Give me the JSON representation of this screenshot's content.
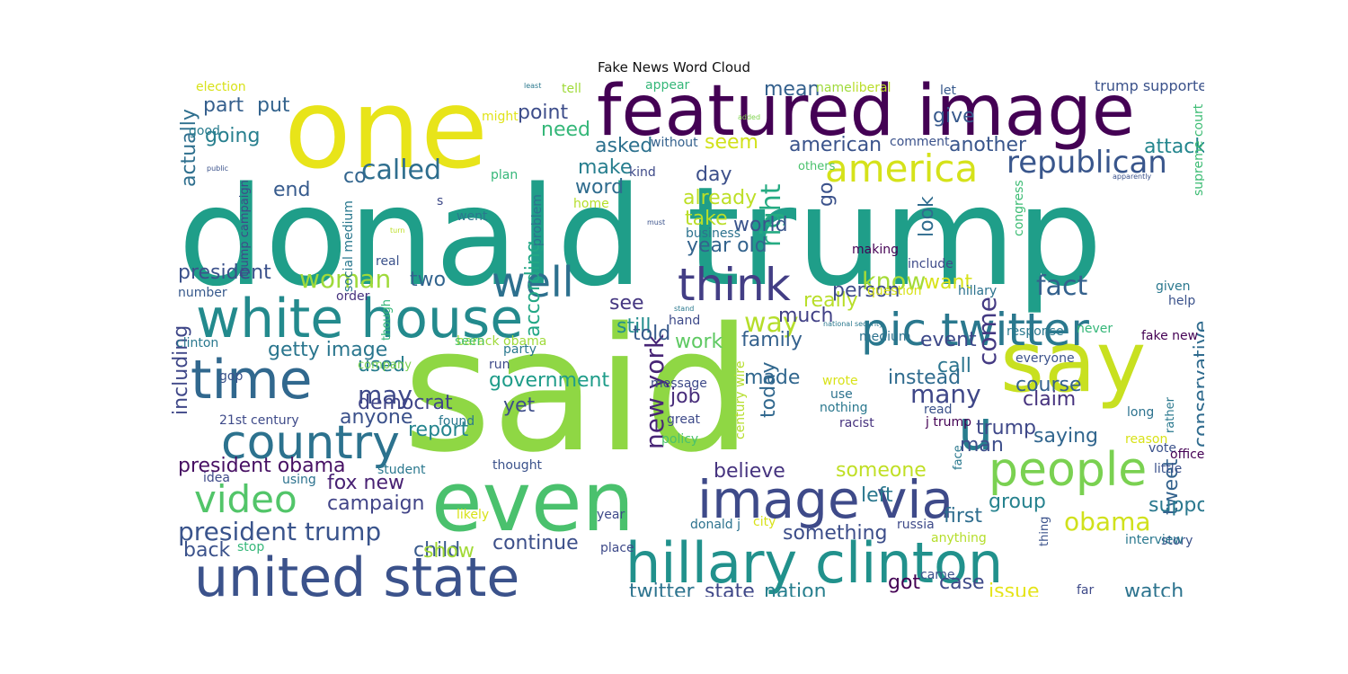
{
  "chart_data": {
    "type": "wordcloud",
    "title": "Fake News Word Cloud",
    "colormap": "viridis",
    "background": "#ffffff",
    "words": [
      {
        "text": "said",
        "weight": 1.0,
        "color": "#8fd744"
      },
      {
        "text": "donald trump",
        "weight": 0.95,
        "color": "#1f9e89"
      },
      {
        "text": "one",
        "weight": 0.7,
        "color": "#e8e419"
      },
      {
        "text": "even",
        "weight": 0.55,
        "color": "#4ac16d"
      },
      {
        "text": "featured image",
        "weight": 0.52,
        "color": "#440154"
      },
      {
        "text": "say",
        "weight": 0.5,
        "color": "#c8e020"
      },
      {
        "text": "white house",
        "weight": 0.42,
        "color": "#238a8d"
      },
      {
        "text": "hillary clinton",
        "weight": 0.42,
        "color": "#21918c"
      },
      {
        "text": "united state",
        "weight": 0.4,
        "color": "#3b528b"
      },
      {
        "text": "image via",
        "weight": 0.38,
        "color": "#3e4a89"
      },
      {
        "text": "time",
        "weight": 0.36,
        "color": "#31688e"
      },
      {
        "text": "people",
        "weight": 0.34,
        "color": "#7ad151"
      },
      {
        "text": "pic twitter",
        "weight": 0.32,
        "color": "#2a788e"
      },
      {
        "text": "u",
        "weight": 0.32,
        "color": "#287d8e"
      },
      {
        "text": "country",
        "weight": 0.3,
        "color": "#2c728e"
      },
      {
        "text": "think",
        "weight": 0.28,
        "color": "#433e85"
      },
      {
        "text": "well",
        "weight": 0.28,
        "color": "#2d708e"
      },
      {
        "text": "america",
        "weight": 0.26,
        "color": "#d5e21a"
      },
      {
        "text": "video",
        "weight": 0.24,
        "color": "#52c569"
      },
      {
        "text": "republican",
        "weight": 0.2,
        "color": "#39568c"
      },
      {
        "text": "called",
        "weight": 0.18,
        "color": "#2e6e8e"
      },
      {
        "text": "president trump",
        "weight": 0.18,
        "color": "#3a548c"
      },
      {
        "text": "new york",
        "weight": 0.17,
        "color": "#482576"
      },
      {
        "text": "fact",
        "weight": 0.17,
        "color": "#34618d"
      },
      {
        "text": "way",
        "weight": 0.17,
        "color": "#b5de2b"
      },
      {
        "text": "know",
        "weight": 0.16,
        "color": "#a5db36"
      },
      {
        "text": "right",
        "weight": 0.16,
        "color": "#25ab82"
      },
      {
        "text": "come",
        "weight": 0.16,
        "color": "#443a83"
      },
      {
        "text": "woman",
        "weight": 0.15,
        "color": "#9fda3a"
      },
      {
        "text": "obama",
        "weight": 0.15,
        "color": "#d0e11c"
      },
      {
        "text": "may",
        "weight": 0.15,
        "color": "#3e4989"
      },
      {
        "text": "many",
        "weight": 0.14,
        "color": "#3f4788"
      },
      {
        "text": "government",
        "weight": 0.14,
        "color": "#1e9c89"
      },
      {
        "text": "according",
        "weight": 0.13,
        "color": "#22a785"
      },
      {
        "text": "conservative",
        "weight": 0.13,
        "color": "#2f6b8e"
      },
      {
        "text": "campaign",
        "weight": 0.13,
        "color": "#414487"
      },
      {
        "text": "president obama",
        "weight": 0.13,
        "color": "#471063"
      },
      {
        "text": "getty image",
        "weight": 0.13,
        "color": "#2a768e"
      },
      {
        "text": "president",
        "weight": 0.12,
        "color": "#3b518b"
      },
      {
        "text": "point",
        "weight": 0.12,
        "color": "#3d4d8a"
      },
      {
        "text": "need",
        "weight": 0.12,
        "color": "#35b779"
      },
      {
        "text": "going",
        "weight": 0.12,
        "color": "#277f8e"
      },
      {
        "text": "part",
        "weight": 0.12,
        "color": "#355f8d"
      },
      {
        "text": "actually",
        "weight": 0.12,
        "color": "#2e6f8e"
      },
      {
        "text": "much",
        "weight": 0.12,
        "color": "#424186"
      },
      {
        "text": "see",
        "weight": 0.12,
        "color": "#453781"
      },
      {
        "text": "take",
        "weight": 0.12,
        "color": "#bade28"
      },
      {
        "text": "two",
        "weight": 0.11,
        "color": "#32648e"
      },
      {
        "text": "still",
        "weight": 0.11,
        "color": "#228d8d"
      },
      {
        "text": "look",
        "weight": 0.11,
        "color": "#2f6c8e"
      },
      {
        "text": "want",
        "weight": 0.11,
        "color": "#d8e219"
      },
      {
        "text": "work",
        "weight": 0.11,
        "color": "#5ec962"
      },
      {
        "text": "year old",
        "weight": 0.11,
        "color": "#33638d"
      },
      {
        "text": "american",
        "weight": 0.11,
        "color": "#3a538b"
      },
      {
        "text": "another",
        "weight": 0.11,
        "color": "#39568c"
      },
      {
        "text": "trump",
        "weight": 0.11,
        "color": "#3f4889"
      },
      {
        "text": "claim",
        "weight": 0.11,
        "color": "#46327e"
      },
      {
        "text": "saying",
        "weight": 0.11,
        "color": "#31668e"
      },
      {
        "text": "call",
        "weight": 0.11,
        "color": "#2b748e"
      },
      {
        "text": "left",
        "weight": 0.11,
        "color": "#2a778e"
      },
      {
        "text": "first",
        "weight": 0.11,
        "color": "#2e6d8e"
      },
      {
        "text": "democrat",
        "weight": 0.1,
        "color": "#404588"
      },
      {
        "text": "fox new",
        "weight": 0.1,
        "color": "#482173"
      },
      {
        "text": "child",
        "weight": 0.1,
        "color": "#38598c"
      },
      {
        "text": "group",
        "weight": 0.1,
        "color": "#26828e"
      },
      {
        "text": "man",
        "weight": 0.1,
        "color": "#3d4e8a"
      },
      {
        "text": "mean",
        "weight": 0.1,
        "color": "#34608d"
      },
      {
        "text": "asked",
        "weight": 0.1,
        "color": "#2d718e"
      },
      {
        "text": "make",
        "weight": 0.1,
        "color": "#277e8e"
      },
      {
        "text": "go",
        "weight": 0.1,
        "color": "#3b528b"
      },
      {
        "text": "made",
        "weight": 0.1,
        "color": "#31678e"
      },
      {
        "text": "today",
        "weight": 0.1,
        "color": "#31688e"
      },
      {
        "text": "day",
        "weight": 0.1,
        "color": "#3c4f8a"
      },
      {
        "text": "told",
        "weight": 0.1,
        "color": "#375a8c"
      },
      {
        "text": "co",
        "weight": 0.1,
        "color": "#32658e"
      },
      {
        "text": "including",
        "weight": 0.09,
        "color": "#3f4788"
      },
      {
        "text": "anyone",
        "weight": 0.09,
        "color": "#3b518b"
      },
      {
        "text": "tweet",
        "weight": 0.09,
        "color": "#33628d"
      },
      {
        "text": "case",
        "weight": 0.09,
        "color": "#3e4a89"
      },
      {
        "text": "course",
        "weight": 0.09,
        "color": "#34618d"
      },
      {
        "text": "report",
        "weight": 0.09,
        "color": "#25858e"
      },
      {
        "text": "used",
        "weight": 0.09,
        "color": "#287c8e"
      },
      {
        "text": "show",
        "weight": 0.09,
        "color": "#a2da37"
      },
      {
        "text": "someone",
        "weight": 0.09,
        "color": "#c0df25"
      },
      {
        "text": "believe",
        "weight": 0.09,
        "color": "#46337f"
      },
      {
        "text": "continue",
        "weight": 0.09,
        "color": "#3c4f8a"
      },
      {
        "text": "watch",
        "weight": 0.09,
        "color": "#2c738e"
      },
      {
        "text": "issue",
        "weight": 0.09,
        "color": "#e5e419"
      },
      {
        "text": "support",
        "weight": 0.09,
        "color": "#2a788e"
      },
      {
        "text": "job",
        "weight": 0.09,
        "color": "#472c7a"
      },
      {
        "text": "yet",
        "weight": 0.09,
        "color": "#3d4d8a"
      },
      {
        "text": "instead",
        "weight": 0.09,
        "color": "#2f6b8e"
      },
      {
        "text": "event",
        "weight": 0.09,
        "color": "#3e4989"
      },
      {
        "text": "family",
        "weight": 0.09,
        "color": "#34618d"
      },
      {
        "text": "world",
        "weight": 0.09,
        "color": "#3a548c"
      },
      {
        "text": "already",
        "weight": 0.09,
        "color": "#bddf26"
      },
      {
        "text": "something",
        "weight": 0.09,
        "color": "#3d4e8a"
      },
      {
        "text": "got",
        "weight": 0.09,
        "color": "#440154"
      },
      {
        "text": "twitter",
        "weight": 0.09,
        "color": "#2c738e"
      },
      {
        "text": "state",
        "weight": 0.08,
        "color": "#3f4788"
      },
      {
        "text": "nation",
        "weight": 0.08,
        "color": "#277f8e"
      },
      {
        "text": "end",
        "weight": 0.08,
        "color": "#375b8d"
      },
      {
        "text": "put",
        "weight": 0.08,
        "color": "#33638d"
      },
      {
        "text": "give",
        "weight": 0.08,
        "color": "#37598c"
      },
      {
        "text": "attack",
        "weight": 0.08,
        "color": "#24868e"
      },
      {
        "text": "seem",
        "weight": 0.08,
        "color": "#d2e21b"
      },
      {
        "text": "word",
        "weight": 0.08,
        "color": "#2f6c8e"
      },
      {
        "text": "back",
        "weight": 0.08,
        "color": "#3b528b"
      },
      {
        "text": "really",
        "weight": 0.07,
        "color": "#b8de29"
      },
      {
        "text": "person",
        "weight": 0.07,
        "color": "#3e4c8a"
      },
      {
        "text": "trump supporter",
        "weight": 0.05,
        "color": "#3b528b"
      },
      {
        "text": "supreme court",
        "weight": 0.05,
        "color": "#3dbc74"
      },
      {
        "text": "election",
        "weight": 0.05,
        "color": "#d8e219"
      },
      {
        "text": "tell",
        "weight": 0.05,
        "color": "#a0da39"
      },
      {
        "text": "appear",
        "weight": 0.05,
        "color": "#35b779"
      },
      {
        "text": "liberal",
        "weight": 0.05,
        "color": "#bade28"
      },
      {
        "text": "let",
        "weight": 0.05,
        "color": "#37598c"
      },
      {
        "text": "name",
        "weight": 0.04,
        "color": "#9fda3a"
      },
      {
        "text": "least",
        "weight": 0.02,
        "color": "#2a788e"
      },
      {
        "text": "might",
        "weight": 0.04,
        "color": "#e0e318"
      },
      {
        "text": "good",
        "weight": 0.04,
        "color": "#287c8e"
      },
      {
        "text": "added",
        "weight": 0.02,
        "color": "#7fd34e"
      },
      {
        "text": "without",
        "weight": 0.04,
        "color": "#34618d"
      },
      {
        "text": "comment",
        "weight": 0.04,
        "color": "#3b528b"
      },
      {
        "text": "others",
        "weight": 0.03,
        "color": "#4ac16d"
      },
      {
        "text": "public",
        "weight": 0.02,
        "color": "#3b528b"
      },
      {
        "text": "trump campaign",
        "weight": 0.04,
        "color": "#3e4a89"
      },
      {
        "text": "plan",
        "weight": 0.04,
        "color": "#35b779"
      },
      {
        "text": "kind",
        "weight": 0.04,
        "color": "#3e4a89"
      },
      {
        "text": "apparently",
        "weight": 0.02,
        "color": "#3b528b"
      },
      {
        "text": "s",
        "weight": 0.04,
        "color": "#3e4a89"
      },
      {
        "text": "went",
        "weight": 0.04,
        "color": "#2a788e"
      },
      {
        "text": "home",
        "weight": 0.04,
        "color": "#b5de2b"
      },
      {
        "text": "problem",
        "weight": 0.04,
        "color": "#2c728e"
      },
      {
        "text": "must",
        "weight": 0.02,
        "color": "#3b528b"
      },
      {
        "text": "turn",
        "weight": 0.02,
        "color": "#bddf26"
      },
      {
        "text": "social medium",
        "weight": 0.04,
        "color": "#2a788e"
      },
      {
        "text": "business",
        "weight": 0.04,
        "color": "#2c728e"
      },
      {
        "text": "making",
        "weight": 0.04,
        "color": "#440154"
      },
      {
        "text": "congress",
        "weight": 0.04,
        "color": "#3dbc74"
      },
      {
        "text": "real",
        "weight": 0.04,
        "color": "#3b528b"
      },
      {
        "text": "include",
        "weight": 0.04,
        "color": "#3e4a89"
      },
      {
        "text": "number",
        "weight": 0.04,
        "color": "#37598c"
      },
      {
        "text": "order",
        "weight": 0.04,
        "color": "#46327e"
      },
      {
        "text": "though",
        "weight": 0.04,
        "color": "#35b779"
      },
      {
        "text": "question",
        "weight": 0.04,
        "color": "#d8e219"
      },
      {
        "text": "hillary",
        "weight": 0.04,
        "color": "#2c728e"
      },
      {
        "text": "help",
        "weight": 0.04,
        "color": "#3b528b"
      },
      {
        "text": "given",
        "weight": 0.04,
        "color": "#2a788e"
      },
      {
        "text": "stand",
        "weight": 0.02,
        "color": "#2a788e"
      },
      {
        "text": "hand",
        "weight": 0.04,
        "color": "#3e4a89"
      },
      {
        "text": "national security",
        "weight": 0.02,
        "color": "#2a788e"
      },
      {
        "text": "clinton",
        "weight": 0.04,
        "color": "#2a788e"
      },
      {
        "text": "barack obama",
        "weight": 0.04,
        "color": "#9fda3a"
      },
      {
        "text": "seen",
        "weight": 0.04,
        "color": "#4ac16d"
      },
      {
        "text": "run",
        "weight": 0.04,
        "color": "#3e4a89"
      },
      {
        "text": "medium",
        "weight": 0.04,
        "color": "#2c728e"
      },
      {
        "text": "response",
        "weight": 0.04,
        "color": "#2a788e"
      },
      {
        "text": "never",
        "weight": 0.04,
        "color": "#35b779"
      },
      {
        "text": "fake new",
        "weight": 0.04,
        "color": "#440154"
      },
      {
        "text": "gop",
        "weight": 0.04,
        "color": "#3b528b"
      },
      {
        "text": "company",
        "weight": 0.04,
        "color": "#7ad151"
      },
      {
        "text": "party",
        "weight": 0.04,
        "color": "#2a788e"
      },
      {
        "text": "message",
        "weight": 0.04,
        "color": "#3e4a89"
      },
      {
        "text": "everyone",
        "weight": 0.04,
        "color": "#3b528b"
      },
      {
        "text": "21st century",
        "weight": 0.04,
        "color": "#3e4a89"
      },
      {
        "text": "century wire",
        "weight": 0.04,
        "color": "#b5de2b"
      },
      {
        "text": "wrote",
        "weight": 0.04,
        "color": "#d8e219"
      },
      {
        "text": "use",
        "weight": 0.04,
        "color": "#2c728e"
      },
      {
        "text": "nothing",
        "weight": 0.04,
        "color": "#2a788e"
      },
      {
        "text": "racist",
        "weight": 0.04,
        "color": "#46327e"
      },
      {
        "text": "read",
        "weight": 0.04,
        "color": "#3b528b"
      },
      {
        "text": "j trump",
        "weight": 0.04,
        "color": "#440154"
      },
      {
        "text": "long",
        "weight": 0.04,
        "color": "#2c728e"
      },
      {
        "text": "rather",
        "weight": 0.04,
        "color": "#2a788e"
      },
      {
        "text": "reason",
        "weight": 0.04,
        "color": "#d8e219"
      },
      {
        "text": "vote",
        "weight": 0.04,
        "color": "#3b528b"
      },
      {
        "text": "idea",
        "weight": 0.04,
        "color": "#3e4a89"
      },
      {
        "text": "student",
        "weight": 0.04,
        "color": "#2a788e"
      },
      {
        "text": "using",
        "weight": 0.04,
        "color": "#2c728e"
      },
      {
        "text": "thought",
        "weight": 0.04,
        "color": "#3b528b"
      },
      {
        "text": "found",
        "weight": 0.04,
        "color": "#2a788e"
      },
      {
        "text": "great",
        "weight": 0.04,
        "color": "#3e4a89"
      },
      {
        "text": "policy",
        "weight": 0.04,
        "color": "#4ac16d"
      },
      {
        "text": "face",
        "weight": 0.03,
        "color": "#2a788e"
      },
      {
        "text": "little",
        "weight": 0.04,
        "color": "#3b528b"
      },
      {
        "text": "office",
        "weight": 0.04,
        "color": "#440154"
      },
      {
        "text": "likely",
        "weight": 0.04,
        "color": "#d8e219"
      },
      {
        "text": "year",
        "weight": 0.04,
        "color": "#3e4a89"
      },
      {
        "text": "city",
        "weight": 0.04,
        "color": "#d8e219"
      },
      {
        "text": "donald j",
        "weight": 0.04,
        "color": "#2c728e"
      },
      {
        "text": "russia",
        "weight": 0.04,
        "color": "#3e4a89"
      },
      {
        "text": "thing",
        "weight": 0.04,
        "color": "#3b528b"
      },
      {
        "text": "story",
        "weight": 0.04,
        "color": "#3b528b"
      },
      {
        "text": "stop",
        "weight": 0.04,
        "color": "#35b779"
      },
      {
        "text": "place",
        "weight": 0.04,
        "color": "#3e4a89"
      },
      {
        "text": "anything",
        "weight": 0.04,
        "color": "#b5de2b"
      },
      {
        "text": "interview",
        "weight": 0.04,
        "color": "#2a788e"
      },
      {
        "text": "came",
        "weight": 0.04,
        "color": "#3b528b"
      },
      {
        "text": "far",
        "weight": 0.04,
        "color": "#3e4a89"
      }
    ]
  }
}
